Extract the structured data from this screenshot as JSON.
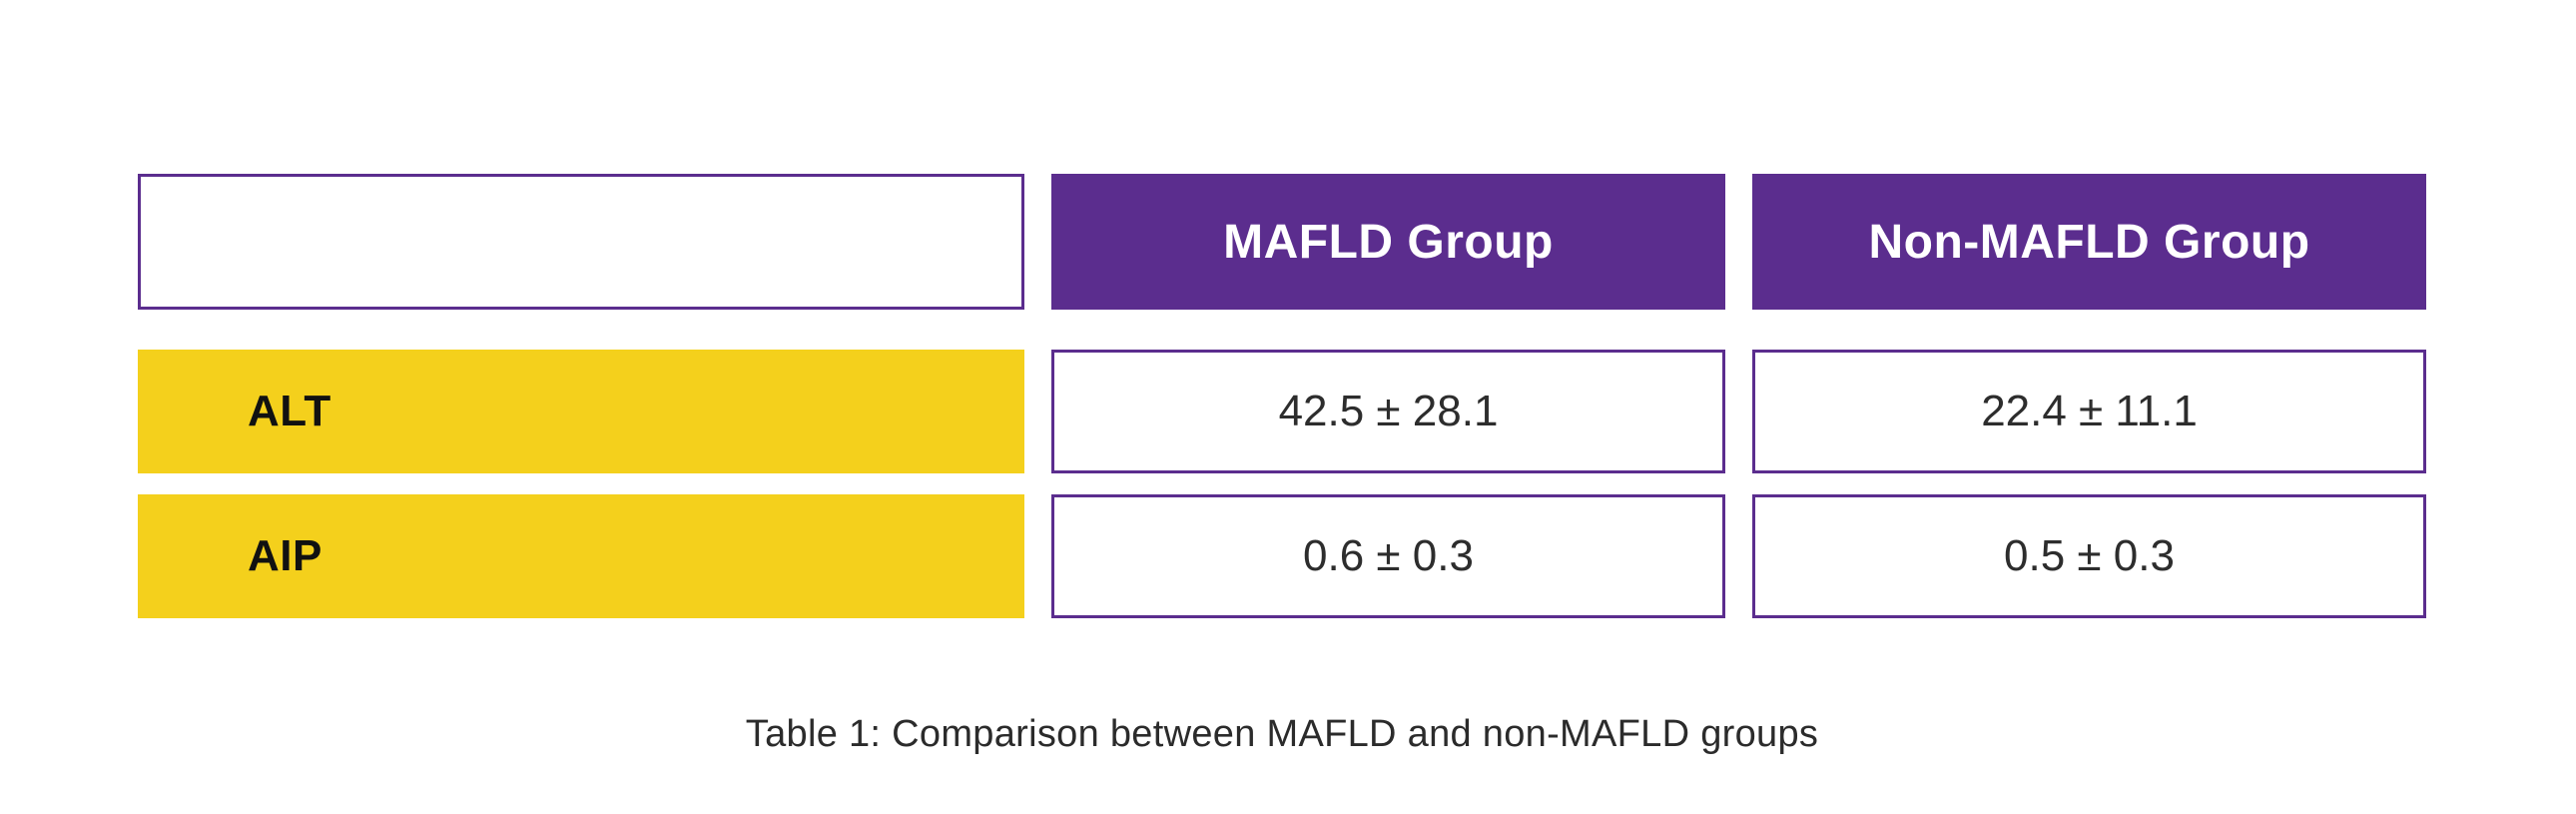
{
  "colors": {
    "purple": "#5b2d8e",
    "yellow": "#f4d01c",
    "header_text": "#ffffff",
    "label_text": "#111111",
    "value_text": "#2d2d2d",
    "caption_text": "#2b2b2b"
  },
  "table": {
    "header": {
      "mafld": "MAFLD Group",
      "non_mafld": "Non-MAFLD Group"
    },
    "rows": [
      {
        "label": "ALT",
        "values": [
          "42.5 ± 28.1",
          "22.4 ± 11.1"
        ]
      },
      {
        "label": "AIP",
        "values": [
          "0.6 ± 0.3",
          "0.5 ± 0.3"
        ]
      }
    ],
    "caption": "Table 1: Comparison between MAFLD and non-MAFLD groups"
  },
  "chart_data": {
    "type": "table",
    "columns": [
      "",
      "MAFLD Group",
      "Non-MAFLD Group"
    ],
    "rows": [
      [
        "ALT",
        "42.5 ± 28.1",
        "22.4 ± 11.1"
      ],
      [
        "AIP",
        "0.6 ± 0.3",
        "0.5 ± 0.3"
      ]
    ],
    "title": "Table 1: Comparison between MAFLD and non-MAFLD groups"
  }
}
